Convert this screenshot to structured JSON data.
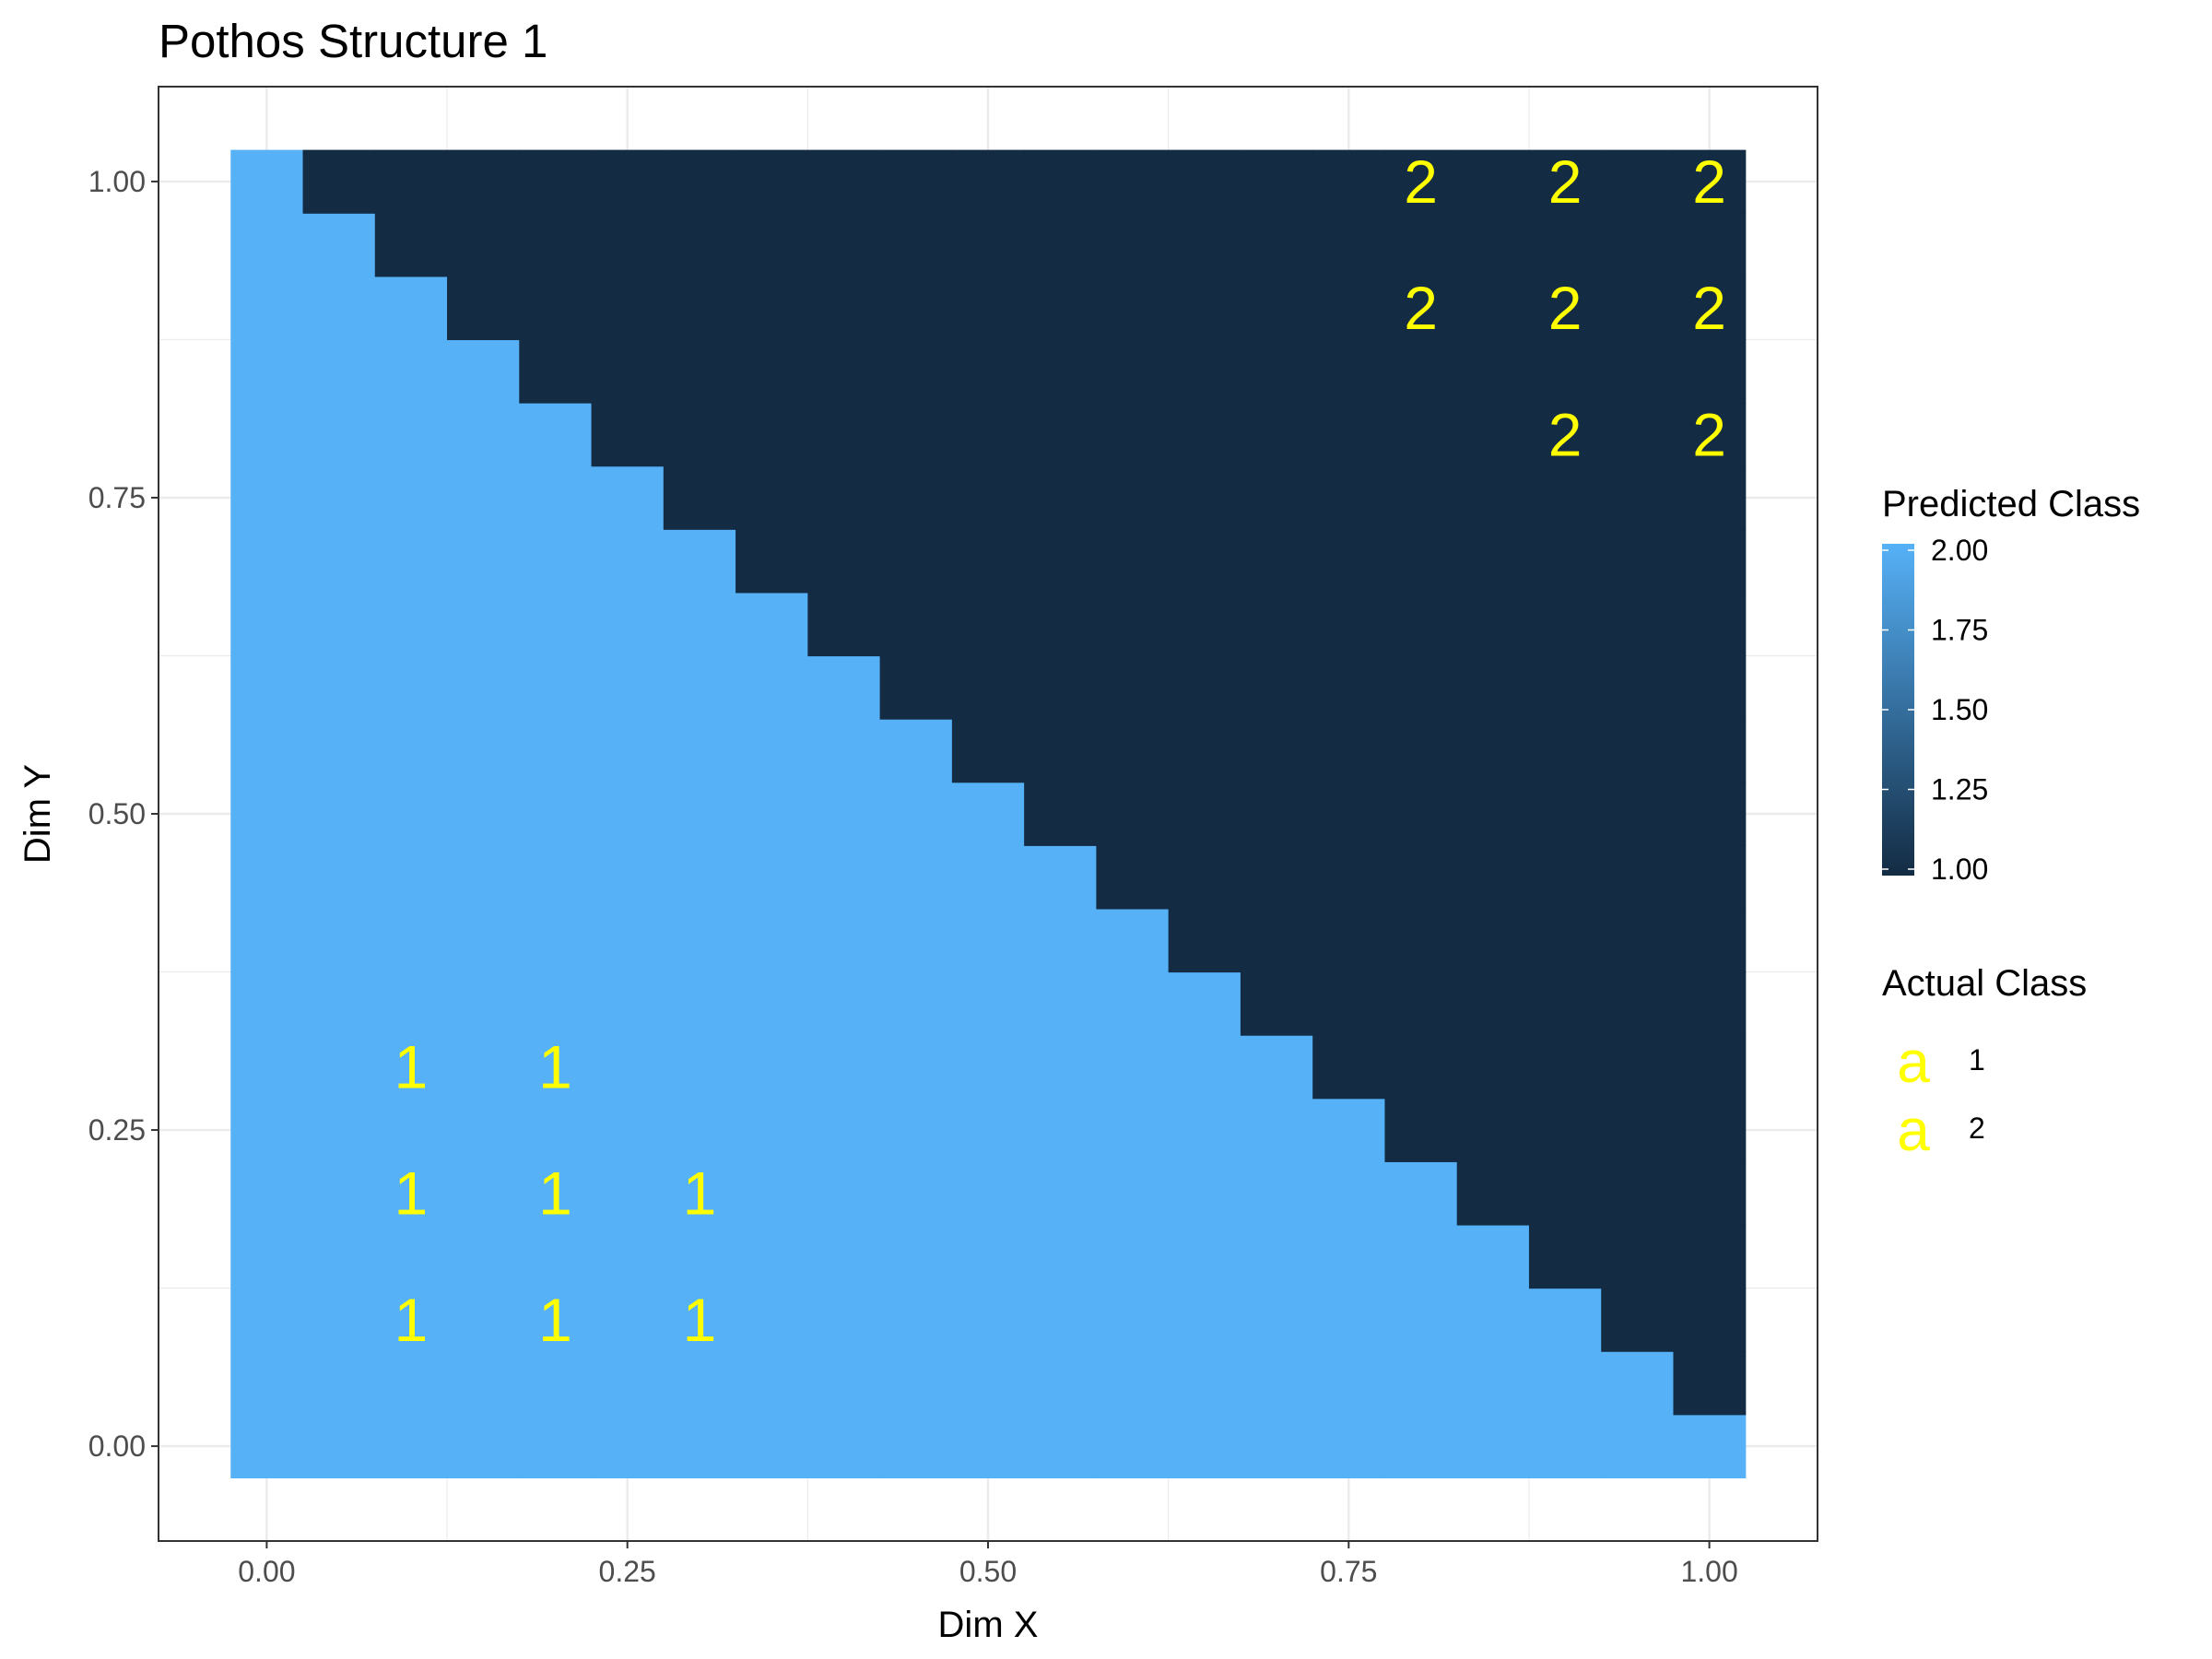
{
  "chart_data": {
    "type": "heatmap",
    "title": "Pothos Structure 1",
    "xlabel": "Dim X",
    "ylabel": "Dim Y",
    "xlim": [
      -0.075,
      1.075
    ],
    "ylim": [
      -0.075,
      1.075
    ],
    "grid": true,
    "x_ticks": [
      0,
      0.25,
      0.5,
      0.75,
      1
    ],
    "x_tick_labels": [
      "0.00",
      "0.25",
      "0.50",
      "0.75",
      "1.00"
    ],
    "y_ticks": [
      0,
      0.25,
      0.5,
      0.75,
      1
    ],
    "y_tick_labels": [
      "0.00",
      "0.25",
      "0.50",
      "0.75",
      "1.00"
    ],
    "tile_size": 0.05,
    "tile_range": [
      0,
      1
    ],
    "decision_rule": "Predicted Class = 1 when x + y > 1.0, else 2",
    "fill_scale": {
      "title": "Predicted Class",
      "low_value": 1.0,
      "high_value": 2.0,
      "low_color": "#132B43",
      "high_color": "#56B1F7",
      "breaks": [
        2.0,
        1.75,
        1.5,
        1.25,
        1.0
      ],
      "break_labels": [
        "2.00",
        "1.75",
        "1.50",
        "1.25",
        "1.00"
      ]
    },
    "points": [
      {
        "x": 0.1,
        "y": 0.3,
        "label": "1"
      },
      {
        "x": 0.2,
        "y": 0.3,
        "label": "1"
      },
      {
        "x": 0.1,
        "y": 0.2,
        "label": "1"
      },
      {
        "x": 0.2,
        "y": 0.2,
        "label": "1"
      },
      {
        "x": 0.3,
        "y": 0.2,
        "label": "1"
      },
      {
        "x": 0.1,
        "y": 0.1,
        "label": "1"
      },
      {
        "x": 0.2,
        "y": 0.1,
        "label": "1"
      },
      {
        "x": 0.3,
        "y": 0.1,
        "label": "1"
      },
      {
        "x": 0.8,
        "y": 1.0,
        "label": "2"
      },
      {
        "x": 0.9,
        "y": 1.0,
        "label": "2"
      },
      {
        "x": 1.0,
        "y": 1.0,
        "label": "2"
      },
      {
        "x": 0.8,
        "y": 0.9,
        "label": "2"
      },
      {
        "x": 0.9,
        "y": 0.9,
        "label": "2"
      },
      {
        "x": 1.0,
        "y": 0.9,
        "label": "2"
      },
      {
        "x": 0.9,
        "y": 0.8,
        "label": "2"
      },
      {
        "x": 1.0,
        "y": 0.8,
        "label": "2"
      }
    ],
    "label_color": "#FFFF00",
    "legend": {
      "placement": "right",
      "actual_class_title": "Actual Class",
      "key_glyph": "a",
      "actual_class_entries": [
        "1",
        "2"
      ]
    }
  }
}
